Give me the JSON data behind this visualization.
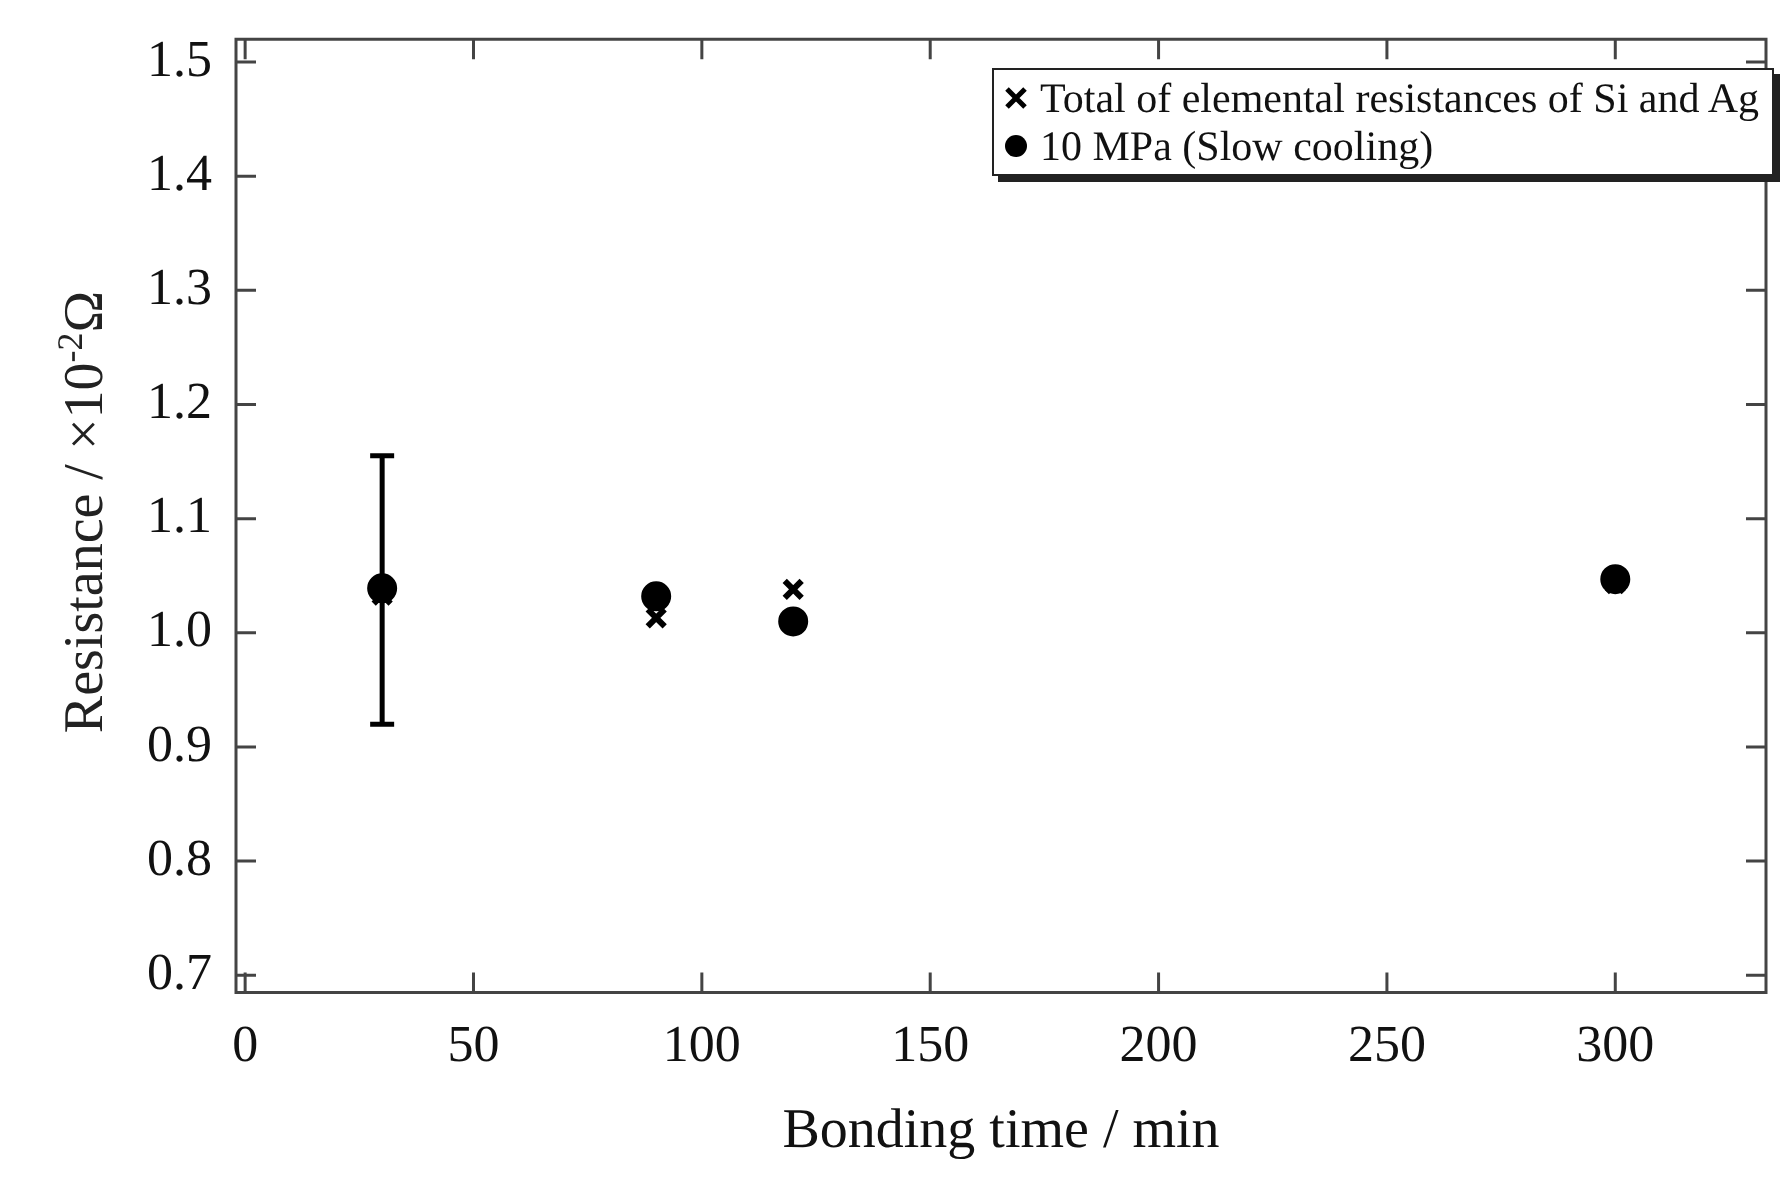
{
  "chart_data": {
    "type": "scatter",
    "xlabel": "Bonding time / min",
    "ylabel": "Resistance / ×10$^{-2}$Ω",
    "x": [
      30,
      90,
      120,
      300
    ],
    "series": [
      {
        "name": "Total of elemental resistances of Si and Ag",
        "color": "#000000",
        "marker": "cross",
        "values": [
          1.033,
          1.013,
          1.038,
          1.043
        ]
      },
      {
        "name": "10 MPa (Slow cooling)",
        "color": "#000000",
        "marker": "circle",
        "values": [
          1.039,
          1.032,
          1.01,
          1.047
        ],
        "errors": [
          [
            0.92,
            1.155
          ],
          null,
          null,
          null
        ]
      }
    ],
    "xlim": [
      -2,
      333
    ],
    "ylim": [
      0.685,
      1.52
    ],
    "xticks": [
      0,
      50,
      100,
      150,
      200,
      250,
      300
    ],
    "yticks": [
      0.7,
      0.8,
      0.9,
      {
        "value": 1,
        "label": "1.0"
      },
      1.1,
      1.2,
      1.3,
      1.4,
      1.5
    ],
    "legend": "top right"
  }
}
